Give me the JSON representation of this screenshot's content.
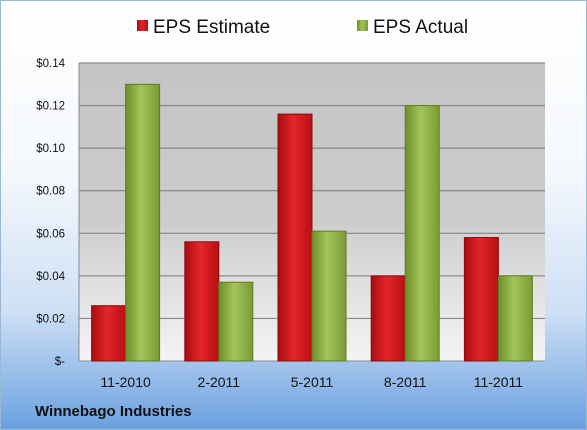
{
  "chart_data": {
    "type": "bar",
    "title": "",
    "xlabel": "",
    "ylabel": "",
    "categories": [
      "11-2010",
      "2-2011",
      "5-2011",
      "8-2011",
      "11-2011"
    ],
    "series": [
      {
        "name": "EPS Estimate",
        "values": [
          0.026,
          0.056,
          0.116,
          0.04,
          0.058
        ],
        "color": "#d0141c"
      },
      {
        "name": "EPS Actual",
        "values": [
          0.13,
          0.037,
          0.061,
          0.12,
          0.04
        ],
        "color": "#8cb13c"
      }
    ],
    "ylim": [
      0,
      0.14
    ],
    "yticks": [
      0,
      0.02,
      0.04,
      0.06,
      0.08,
      0.1,
      0.12,
      0.14
    ],
    "ytick_labels": [
      "$-",
      "$0.02",
      "$0.04",
      "$0.06",
      "$0.08",
      "$0.10",
      "$0.12",
      "$0.14"
    ],
    "grid": true,
    "legend_position": "top-center"
  },
  "footer": {
    "company": "Winnebago Industries"
  }
}
